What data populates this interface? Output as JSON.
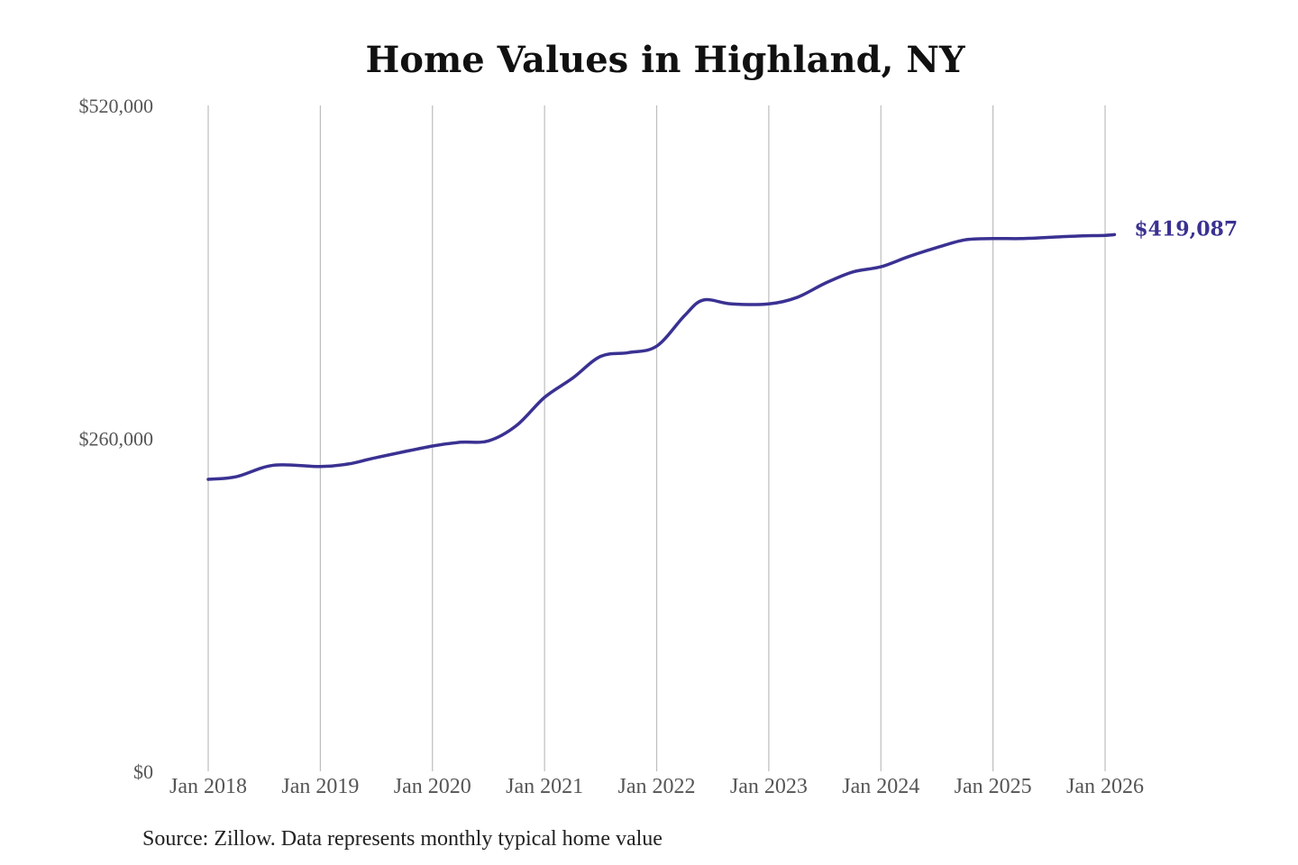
{
  "chart_data": {
    "type": "line",
    "title": "Home Values in Highland, NY",
    "xlabel": "",
    "ylabel": "",
    "ylim": [
      0,
      520000
    ],
    "y_ticks": [
      {
        "value": 520000,
        "label": "$520,000"
      },
      {
        "value": 260000,
        "label": "$260,000"
      },
      {
        "value": 0,
        "label": "$0"
      }
    ],
    "x_ticks": [
      {
        "value": "2018-01",
        "label": "Jan 2018"
      },
      {
        "value": "2019-01",
        "label": "Jan 2019"
      },
      {
        "value": "2020-01",
        "label": "Jan 2020"
      },
      {
        "value": "2021-01",
        "label": "Jan 2021"
      },
      {
        "value": "2022-01",
        "label": "Jan 2022"
      },
      {
        "value": "2023-01",
        "label": "Jan 2023"
      },
      {
        "value": "2024-01",
        "label": "Jan 2024"
      },
      {
        "value": "2025-01",
        "label": "Jan 2025"
      },
      {
        "value": "2026-01",
        "label": "Jan 2026"
      }
    ],
    "grid": "vertical",
    "series": [
      {
        "color": "#3a3192",
        "points": [
          {
            "x": "2018-01",
            "y": 228000
          },
          {
            "x": "2018-04",
            "y": 230000
          },
          {
            "x": "2018-08",
            "y": 239000
          },
          {
            "x": "2019-01",
            "y": 238000
          },
          {
            "x": "2019-04",
            "y": 240000
          },
          {
            "x": "2019-07",
            "y": 245000
          },
          {
            "x": "2020-01",
            "y": 254000
          },
          {
            "x": "2020-04",
            "y": 257000
          },
          {
            "x": "2020-07",
            "y": 258000
          },
          {
            "x": "2020-10",
            "y": 270000
          },
          {
            "x": "2021-01",
            "y": 292000
          },
          {
            "x": "2021-04",
            "y": 307000
          },
          {
            "x": "2021-07",
            "y": 324000
          },
          {
            "x": "2021-10",
            "y": 327000
          },
          {
            "x": "2022-01",
            "y": 332000
          },
          {
            "x": "2022-04",
            "y": 356000
          },
          {
            "x": "2022-06",
            "y": 368000
          },
          {
            "x": "2022-09",
            "y": 365000
          },
          {
            "x": "2023-01",
            "y": 365000
          },
          {
            "x": "2023-04",
            "y": 370000
          },
          {
            "x": "2023-07",
            "y": 381000
          },
          {
            "x": "2023-10",
            "y": 390000
          },
          {
            "x": "2024-01",
            "y": 394000
          },
          {
            "x": "2024-04",
            "y": 402000
          },
          {
            "x": "2024-07",
            "y": 409000
          },
          {
            "x": "2024-10",
            "y": 415000
          },
          {
            "x": "2025-01",
            "y": 416000
          },
          {
            "x": "2025-04",
            "y": 416000
          },
          {
            "x": "2025-07",
            "y": 417000
          },
          {
            "x": "2025-10",
            "y": 418000
          },
          {
            "x": "2026-01",
            "y": 418500
          },
          {
            "x": "2026-02",
            "y": 419087
          }
        ]
      }
    ],
    "annotations": [
      {
        "text": "$419,087",
        "x": "2026-02",
        "y": 419087
      }
    ],
    "source_note": "Source: Zillow. Data represents monthly typical home value"
  }
}
